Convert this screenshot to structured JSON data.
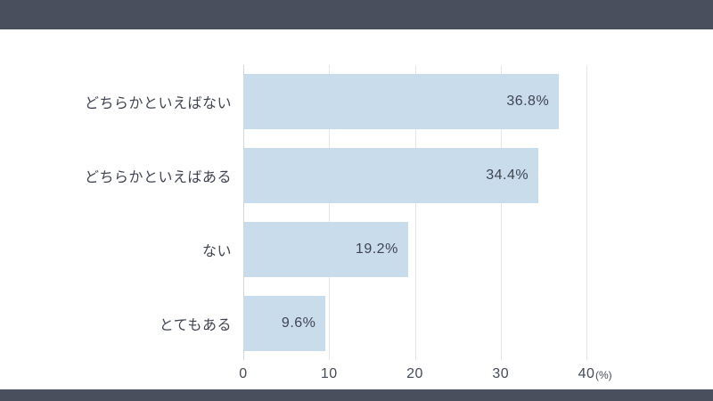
{
  "page": {
    "top_band_color": "#4a4f5d",
    "bottom_band_color": "#4a4f5d",
    "background_color": "#ffffff"
  },
  "chart_data": {
    "type": "bar",
    "orientation": "horizontal",
    "title": "",
    "categories": [
      "どちらかといえばない",
      "どちらかといえばある",
      "ない",
      "とてもある"
    ],
    "values": [
      36.8,
      34.4,
      19.2,
      9.6
    ],
    "value_labels": [
      "36.8%",
      "34.4%",
      "19.2%",
      "9.6%"
    ],
    "xlim": [
      0,
      40
    ],
    "x_ticks": [
      0,
      10,
      20,
      30,
      40
    ],
    "x_tick_labels": [
      "0",
      "10",
      "20",
      "30",
      "40"
    ],
    "unit_label": "(%)",
    "grid": true,
    "legend": false,
    "bar_color": "#c9dcec",
    "text_color": "#3f4450",
    "gridline_color": "#e4e6e9",
    "zero_line_color": "#d2d5da"
  }
}
